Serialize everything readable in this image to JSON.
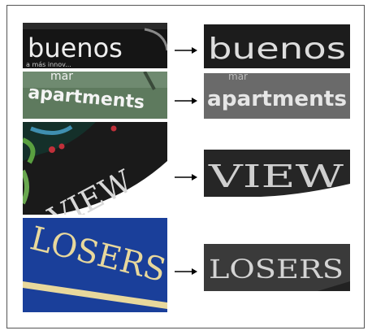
{
  "rows": [
    {
      "original": {
        "main_text": "buenos",
        "sub_text": "a más innov..."
      },
      "rectified": {
        "text": "buenos"
      }
    },
    {
      "original": {
        "top_text": "mar",
        "main_text": "apartments"
      },
      "rectified": {
        "top_text": "mar",
        "text": "apartments"
      }
    },
    {
      "original": {
        "main_text": "VIEW"
      },
      "rectified": {
        "text": "VIEW"
      }
    },
    {
      "original": {
        "main_text": "LOSERS"
      },
      "rectified": {
        "text": "LOSERS"
      }
    }
  ],
  "colors": {
    "frame": "#555555",
    "arrow": "#000000",
    "blue_panel": "#1a3f9a",
    "gold_text": "#e8d89c",
    "green_panel": "#5e7a5e"
  }
}
